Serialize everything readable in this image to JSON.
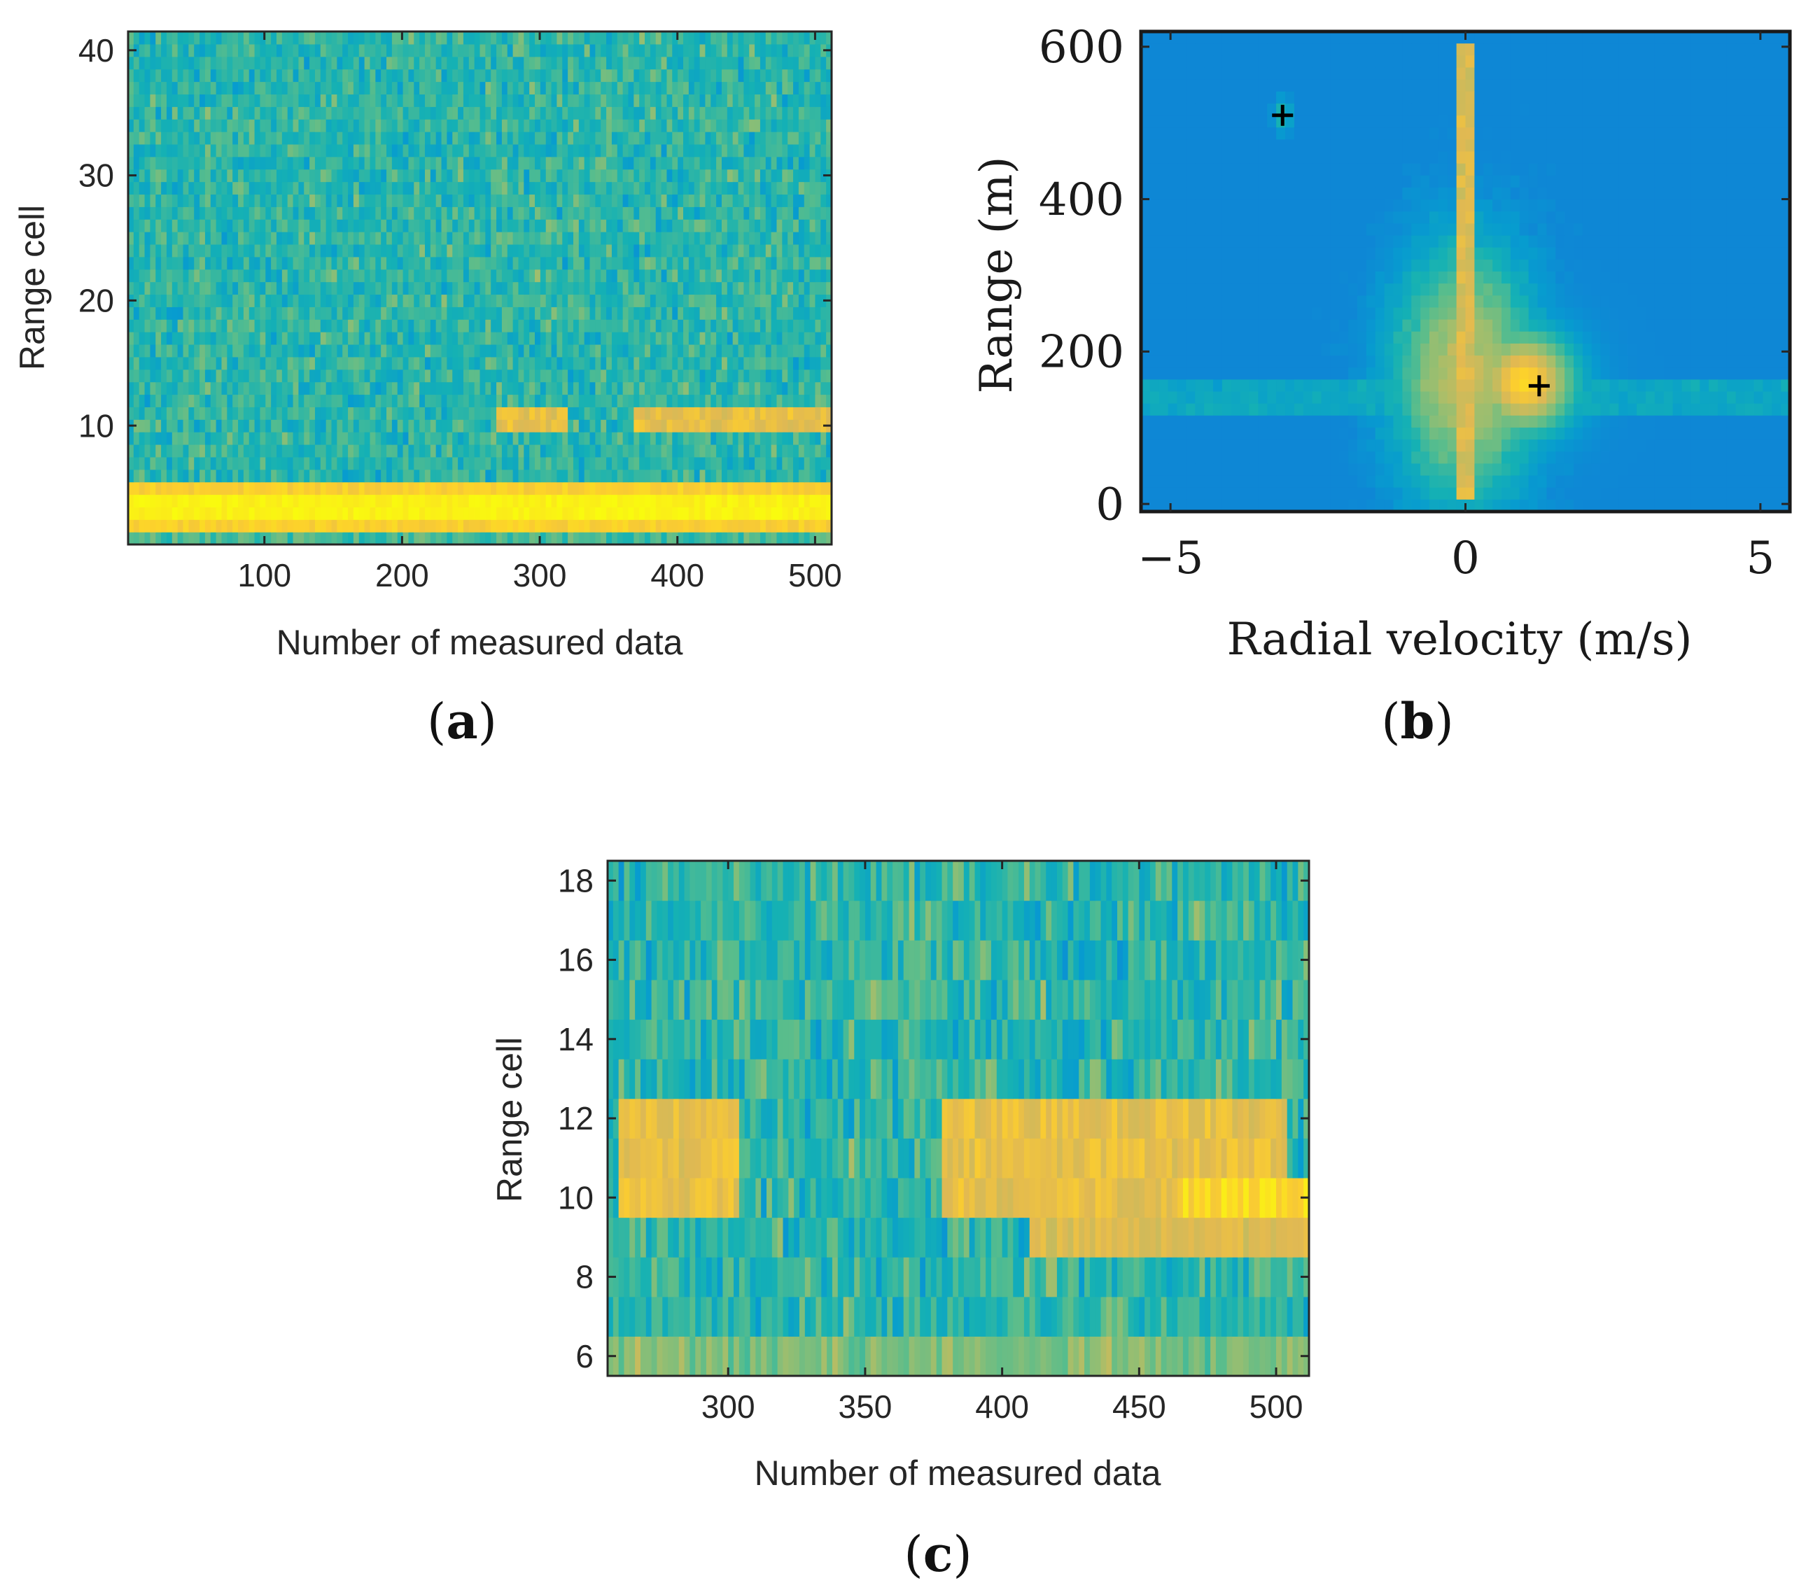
{
  "chart_data": [
    {
      "id": "a",
      "type": "heatmap",
      "subplot_label": "a",
      "xlabel": "Number of measured data",
      "ylabel": "Range cell",
      "xlim": [
        1,
        512
      ],
      "ylim": [
        0.5,
        41.5
      ],
      "xticks": [
        100,
        200,
        300,
        400,
        500
      ],
      "yticks": [
        10,
        20,
        30,
        40
      ],
      "n_rows": 41,
      "n_cols": 128,
      "colormap": "parula",
      "background_level": 0.58,
      "strong_band_rows": [
        2,
        3,
        4,
        5
      ],
      "target_band_rows": [
        10,
        11
      ],
      "target_segments": [
        [
          270,
          320
        ],
        [
          370,
          512
        ]
      ]
    },
    {
      "id": "b",
      "type": "heatmap",
      "subplot_label": "b",
      "xlabel": "Radial velocity (m/s)",
      "ylabel": "Range (m)",
      "xlim": [
        -5.5,
        5.5
      ],
      "ylim": [
        -10,
        620
      ],
      "xticks": [
        -5,
        0,
        5
      ],
      "xtick_labels": [
        "−5",
        "0",
        "5"
      ],
      "yticks": [
        0,
        200,
        400,
        600
      ],
      "colormap": "parula",
      "markers": [
        {
          "x": -3.1,
          "y": 510,
          "symbol": "+"
        },
        {
          "x": 1.25,
          "y": 155,
          "symbol": "+"
        }
      ]
    },
    {
      "id": "c",
      "type": "heatmap",
      "subplot_label": "c",
      "xlabel": "Number of measured data",
      "ylabel": "Range cell",
      "xlim": [
        256,
        512
      ],
      "ylim": [
        5.5,
        18.5
      ],
      "xticks": [
        300,
        350,
        400,
        450,
        500
      ],
      "yticks": [
        6,
        8,
        10,
        12,
        14,
        16,
        18
      ],
      "n_rows": 13,
      "n_cols": 128,
      "colormap": "parula",
      "target_band_rows": [
        9,
        10,
        11,
        12
      ]
    }
  ]
}
